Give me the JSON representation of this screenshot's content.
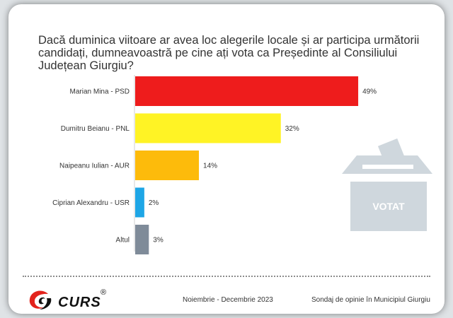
{
  "chart_data": {
    "type": "bar",
    "orientation": "horizontal",
    "title": "Dacă duminica viitoare ar avea loc alegerile locale și ar participa următorii candidați, dumneavoastră pe cine ați vota ca Președinte al Consiliului Județean Giurgiu?",
    "categories": [
      "Marian Mina - PSD",
      "Dumitru Beianu - PNL",
      "Naipeanu Iulian - AUR",
      "Ciprian Alexandru - USR",
      "Altul"
    ],
    "values": [
      49,
      32,
      14,
      2,
      3
    ],
    "value_labels": [
      "49%",
      "32%",
      "14%",
      "2%",
      "3%"
    ],
    "colors": [
      "#ee1c1c",
      "#fff325",
      "#fdbb0b",
      "#1ea6e6",
      "#7f8b99"
    ],
    "unit": "%",
    "grid": false,
    "legend": "none"
  },
  "ballot_box": {
    "label": "VOTAT",
    "color": "#cfd7dd"
  },
  "logo": {
    "text": "CURS",
    "registered": "®",
    "accent_color": "#e3231c"
  },
  "footer": {
    "date": "Noiembrie - Decembrie 2023",
    "source": "Sondaj de opinie în Municipiul Giurgiu"
  }
}
